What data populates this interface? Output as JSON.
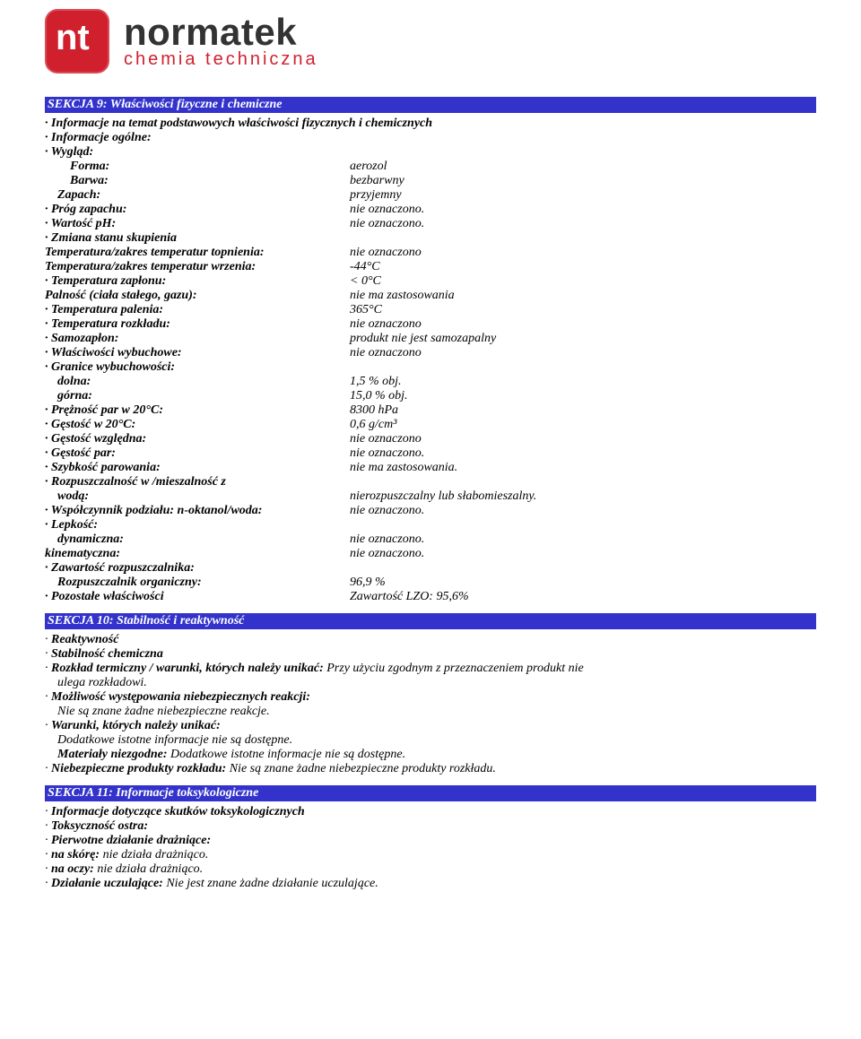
{
  "logo": {
    "brand": "normatek",
    "tagline": "chemia techniczna",
    "brand_color": "#333333",
    "accent_color": "#d0202e"
  },
  "section9": {
    "title": "SEKCJA 9: Właściwości fizyczne i chemiczne",
    "intro": "Informacje na temat podstawowych właściwości fizycznych i chemicznych",
    "info_general": "Informacje ogólne:",
    "appearance": "Wygląd:",
    "rows": [
      {
        "label": "Forma:",
        "value": "aerozol",
        "indent": 2
      },
      {
        "label": "Barwa:",
        "value": "bezbarwny",
        "indent": 2
      },
      {
        "label": "Zapach:",
        "value": "przyjemny",
        "indent": 1,
        "bullet": false
      },
      {
        "label": "Próg zapachu:",
        "value": "nie oznaczono.",
        "bullet": true
      },
      {
        "label": "Wartość pH:",
        "value": "nie oznaczono.",
        "bullet": true
      },
      {
        "label": "Zmiana stanu skupienia",
        "value": "",
        "bullet": true
      },
      {
        "label": "Temperatura/zakres temperatur topnienia:",
        "value": "nie oznaczono"
      },
      {
        "label": "Temperatura/zakres temperatur wrzenia:",
        "value": "-44°C"
      },
      {
        "label": "Temperatura zapłonu:",
        "value": "< 0°C",
        "bullet": true
      },
      {
        "label": "Palność (ciała stałego, gazu):",
        "value": "nie ma zastosowania"
      },
      {
        "label": "Temperatura palenia:",
        "value": "365°C",
        "bullet": true
      },
      {
        "label": "Temperatura rozkładu:",
        "value": "nie oznaczono",
        "bullet": true
      },
      {
        "label": "Samozapłon:",
        "value": "produkt nie jest samozapalny",
        "bullet": true
      },
      {
        "label": "Właściwości wybuchowe:",
        "value": "nie oznaczono",
        "bullet": true
      },
      {
        "label": "Granice wybuchowości:",
        "value": "",
        "bullet": true,
        "prefix": "·"
      },
      {
        "label": "dolna:",
        "value": "1,5 % obj.",
        "indent": 1
      },
      {
        "label": "górna:",
        "value": "15,0 % obj.",
        "indent": 1
      },
      {
        "label": "Prężność par w 20°C:",
        "value": "8300 hPa",
        "bullet": true
      },
      {
        "label": "Gęstość w 20°C:",
        "value": "0,6 g/cm³",
        "bullet": true
      },
      {
        "label": "Gęstość względna:",
        "value": "nie oznaczono",
        "bullet": true
      },
      {
        "label": "Gęstość par:",
        "value": "nie oznaczono.",
        "bullet": true
      },
      {
        "label": "Szybkość parowania:",
        "value": "nie ma zastosowania.",
        "bullet": true
      },
      {
        "label": "Rozpuszczalność w /mieszalność z",
        "value": "",
        "bullet": true
      },
      {
        "label": "wodą:",
        "value": "nierozpuszczalny lub słabomieszalny.",
        "indent": 1
      },
      {
        "label": "Współczynnik podziału: n-oktanol/woda:",
        "value": "nie oznaczono.",
        "bullet": true
      },
      {
        "label": "Lepkość:",
        "value": "",
        "bullet": true
      },
      {
        "label": "dynamiczna:",
        "value": "nie oznaczono.",
        "indent": 1
      },
      {
        "label": "kinematyczna:",
        "value": "nie oznaczono."
      },
      {
        "label": "Zawartość rozpuszczalnika:",
        "value": "",
        "bullet": true
      },
      {
        "label": "Rozpuszczalnik organiczny:",
        "value": "96,9 %",
        "indent": 1
      },
      {
        "label": "Pozostałe właściwości",
        "value": "Zawartość LZO: 95,6%",
        "bullet": true
      }
    ]
  },
  "section10": {
    "title": "SEKCJA 10: Stabilność i reaktywność",
    "lines": [
      {
        "text": "Reaktywność",
        "bold": true,
        "bullet": true
      },
      {
        "text": "Stabilność chemiczna",
        "bold": true,
        "bullet": true
      },
      {
        "lead": "Rozkład termiczny / warunki, których należy unikać: ",
        "tail": "Przy użyciu zgodnym z przeznaczeniem produkt nie",
        "bullet": true
      },
      {
        "tail": "ulega rozkładowi.",
        "indent": 1
      },
      {
        "text": "Możliwość występowania niebezpiecznych reakcji:",
        "bold": true,
        "bullet": true
      },
      {
        "tail": "Nie są znane żadne niebezpieczne reakcje.",
        "indent": 1
      },
      {
        "text": "Warunki, których należy unikać:",
        "bold": true,
        "bullet": true
      },
      {
        "tail": "Dodatkowe istotne informacje nie są dostępne.",
        "indent": 1
      },
      {
        "lead": "Materiały niezgodne: ",
        "tail": "Dodatkowe istotne informacje nie są dostępne.",
        "indent": 1,
        "leadbold": true
      },
      {
        "lead": "Niebezpieczne produkty rozkładu: ",
        "tail": "Nie są znane żadne niebezpieczne produkty rozkładu.",
        "bullet": true
      }
    ]
  },
  "section11": {
    "title": "SEKCJA 11: Informacje toksykologiczne",
    "lines": [
      {
        "text": "Informacje dotyczące skutków toksykologicznych",
        "bold": true,
        "bullet": true
      },
      {
        "text": "Toksyczność ostra:",
        "bold": true,
        "bullet": true
      },
      {
        "text": "Pierwotne działanie drażniące:",
        "bold": true,
        "bullet": true
      },
      {
        "lead": "na skórę: ",
        "tail": "nie działa drażniąco.",
        "bullet": true
      },
      {
        "lead": "na oczy: ",
        "tail": "nie działa drażniąco.",
        "bullet": true
      },
      {
        "lead": "Działanie uczulające: ",
        "tail": "Nie jest znane żadne działanie uczulające.",
        "bullet": true
      }
    ]
  },
  "colors": {
    "bar_bg": "#3333cc",
    "bar_text": "#ffffff"
  }
}
